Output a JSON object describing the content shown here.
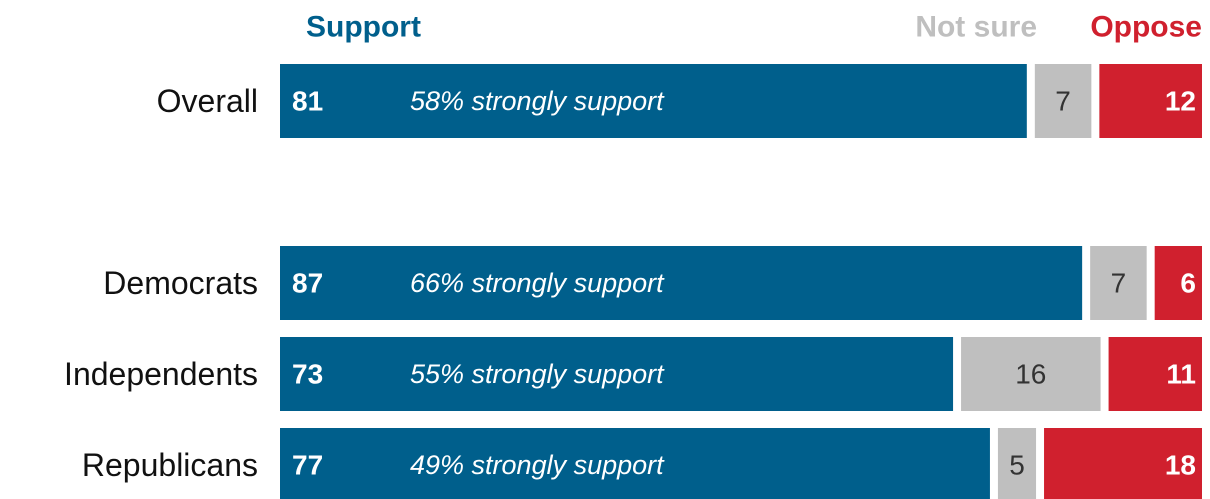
{
  "chart_data": {
    "type": "stacked-bar",
    "categories": [
      "Overall",
      "Democrats",
      "Independents",
      "Republicans"
    ],
    "series": [
      {
        "name": "Support",
        "color": "#005f8c",
        "values": [
          81,
          87,
          73,
          77
        ]
      },
      {
        "name": "Not sure",
        "color": "#bfbfbf",
        "values": [
          7,
          7,
          16,
          5
        ]
      },
      {
        "name": "Oppose",
        "color": "#d0202e",
        "values": [
          12,
          6,
          11,
          18
        ]
      }
    ],
    "annotations": [
      "58% strongly support",
      "66% strongly support",
      "55% strongly support",
      "49% strongly support"
    ],
    "xlim": [
      0,
      100
    ]
  }
}
